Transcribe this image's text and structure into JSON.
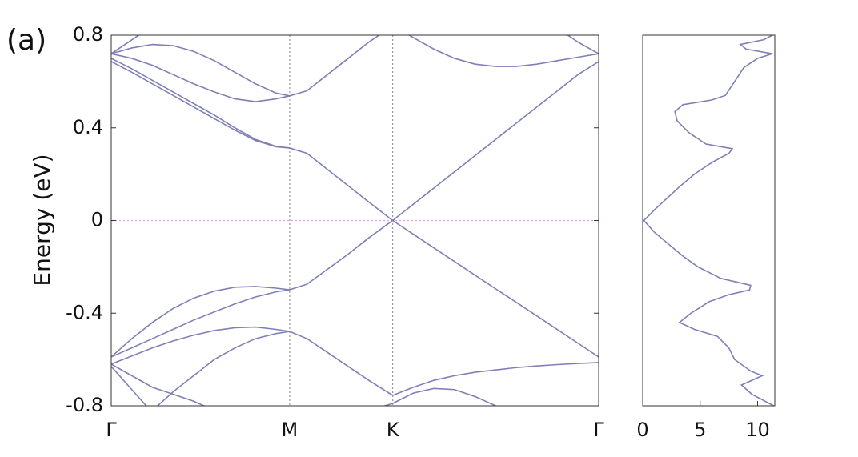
{
  "panel_label": "(a)",
  "chart_data": [
    {
      "type": "line",
      "ylabel": "Energy (eV)",
      "color": "#7f7fb8",
      "xlim": [
        0,
        2.366
      ],
      "xticks": [
        {
          "value": 0,
          "label": "Γ"
        },
        {
          "value": 0.866,
          "label": "M"
        },
        {
          "value": 1.366,
          "label": "K"
        },
        {
          "value": 2.366,
          "label": "Γ"
        }
      ],
      "vlines": true,
      "hline": 0,
      "ylim": [
        -0.8,
        0.8
      ],
      "yticks": [
        -0.8,
        -0.4,
        0,
        0.4,
        0.8
      ],
      "x": [
        0,
        0.1,
        0.2,
        0.3,
        0.4,
        0.5,
        0.6,
        0.7,
        0.8,
        0.866,
        0.95,
        1.05,
        1.15,
        1.25,
        1.366,
        1.466,
        1.566,
        1.666,
        1.766,
        1.866,
        1.966,
        2.066,
        2.166,
        2.266,
        2.366
      ],
      "series": [
        {
          "values": [
            0.686,
            0.64,
            0.59,
            0.54,
            0.49,
            0.44,
            0.39,
            0.345,
            0.318,
            0.313,
            0.29,
            0.22,
            0.15,
            0.08,
            0,
            0.07,
            0.14,
            0.21,
            0.28,
            0.35,
            0.42,
            0.49,
            0.56,
            0.63,
            0.686
          ]
        },
        {
          "values": [
            0.7,
            0.655,
            0.605,
            0.555,
            0.505,
            0.455,
            0.4,
            0.35,
            0.32,
            0.313,
            null,
            null,
            null,
            null,
            null,
            null,
            null,
            null,
            null,
            null,
            null,
            null,
            null,
            null,
            null
          ]
        },
        {
          "values": [
            0.72,
            0.7,
            0.67,
            0.63,
            0.59,
            0.555,
            0.525,
            0.513,
            0.525,
            0.538,
            0.56,
            0.63,
            0.7,
            0.77,
            0.84,
            0.79,
            0.74,
            0.7,
            0.675,
            0.665,
            0.665,
            0.675,
            0.69,
            0.705,
            0.72
          ]
        },
        {
          "values": [
            0.72,
            0.745,
            0.76,
            0.755,
            0.73,
            0.69,
            0.64,
            0.59,
            0.55,
            0.538,
            null,
            null,
            null,
            null,
            null,
            null,
            null,
            null,
            null,
            null,
            null,
            null,
            0.83,
            0.77,
            0.72
          ]
        },
        {
          "values": [
            0.72,
            0.78,
            0.84,
            null,
            null,
            null,
            null,
            null,
            null,
            null,
            null,
            null,
            null,
            null,
            null,
            null,
            null,
            null,
            null,
            null,
            null,
            null,
            null,
            null,
            null
          ]
        },
        {
          "values": [
            -0.589,
            -0.55,
            -0.51,
            -0.47,
            -0.43,
            -0.395,
            -0.36,
            -0.33,
            -0.308,
            -0.299,
            -0.275,
            -0.21,
            -0.145,
            -0.075,
            0,
            -0.059,
            -0.118,
            -0.177,
            -0.236,
            -0.295,
            -0.353,
            -0.412,
            -0.471,
            -0.53,
            -0.589
          ]
        },
        {
          "values": [
            -0.589,
            -0.51,
            -0.44,
            -0.38,
            -0.335,
            -0.305,
            -0.288,
            -0.285,
            -0.292,
            -0.299,
            null,
            null,
            null,
            null,
            null,
            null,
            null,
            null,
            null,
            null,
            null,
            null,
            null,
            null,
            null
          ]
        },
        {
          "values": [
            -0.62,
            -0.585,
            -0.55,
            -0.52,
            -0.495,
            -0.475,
            -0.463,
            -0.46,
            -0.47,
            -0.479,
            -0.51,
            -0.57,
            -0.63,
            -0.69,
            -0.755,
            -0.72,
            -0.69,
            -0.67,
            -0.655,
            -0.645,
            -0.635,
            -0.628,
            -0.622,
            -0.617,
            -0.613
          ]
        },
        {
          "values": [
            null,
            null,
            -0.82,
            -0.74,
            -0.67,
            -0.6,
            -0.55,
            -0.51,
            -0.488,
            -0.479,
            null,
            null,
            null,
            null,
            null,
            null,
            null,
            null,
            null,
            null,
            null,
            null,
            null,
            null,
            null
          ]
        },
        {
          "values": [
            -0.62,
            -0.67,
            -0.72,
            -0.75,
            -0.78,
            -0.82,
            null,
            null,
            null,
            null,
            null,
            null,
            null,
            null,
            null,
            null,
            null,
            null,
            null,
            null,
            null,
            null,
            null,
            null,
            null
          ]
        },
        {
          "values": [
            -0.63,
            -0.73,
            -0.83,
            null,
            null,
            null,
            null,
            null,
            null,
            null,
            null,
            null,
            null,
            null,
            null,
            null,
            null,
            null,
            null,
            null,
            null,
            null,
            null,
            null,
            null
          ]
        },
        {
          "values": [
            null,
            null,
            null,
            null,
            null,
            null,
            null,
            null,
            null,
            null,
            null,
            null,
            null,
            -0.82,
            -0.79,
            -0.745,
            -0.725,
            -0.73,
            -0.76,
            -0.8,
            -0.85,
            null,
            null,
            null,
            null
          ]
        }
      ]
    },
    {
      "type": "line",
      "orientation": "horizontal",
      "color": "#7f7fb8",
      "xlim": [
        -0.8,
        0.8
      ],
      "ylim": [
        0,
        11.5
      ],
      "yticks": [
        0,
        5,
        10
      ],
      "x": [
        -0.8,
        -0.75,
        -0.71,
        -0.67,
        -0.65,
        -0.6,
        -0.55,
        -0.5,
        -0.47,
        -0.44,
        -0.4,
        -0.35,
        -0.32,
        -0.3,
        -0.28,
        -0.25,
        -0.2,
        -0.15,
        -0.1,
        -0.05,
        0,
        0.05,
        0.1,
        0.15,
        0.2,
        0.25,
        0.29,
        0.31,
        0.33,
        0.38,
        0.43,
        0.47,
        0.5,
        0.52,
        0.54,
        0.6,
        0.66,
        0.7,
        0.72,
        0.74,
        0.76,
        0.78,
        0.8
      ],
      "values": [
        11.4,
        9.5,
        8.6,
        10.4,
        9.4,
        8.0,
        7.5,
        6.5,
        4.5,
        3.2,
        4.2,
        5.8,
        7.5,
        9.3,
        9.4,
        6.8,
        4.8,
        3.4,
        2.2,
        1.0,
        0.1,
        1.1,
        2.2,
        3.3,
        4.5,
        6.0,
        7.5,
        7.8,
        5.5,
        4.0,
        3.0,
        2.8,
        3.5,
        6.0,
        7.2,
        8.0,
        8.8,
        10.0,
        11.3,
        9.0,
        8.5,
        10.5,
        11.3
      ]
    }
  ]
}
